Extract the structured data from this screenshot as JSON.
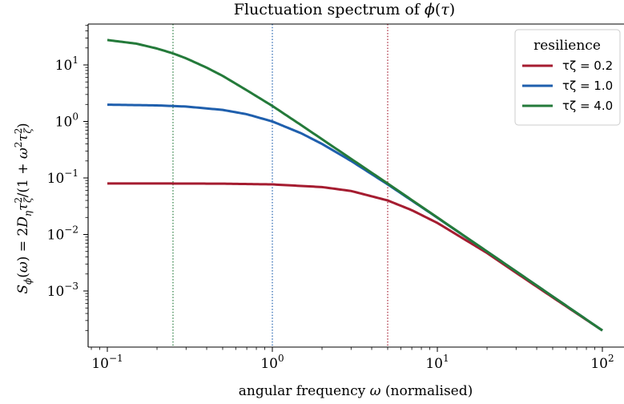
{
  "chart_data": {
    "type": "line",
    "title": "Fluctuation spectrum of ϕ(τ)",
    "xlabel": "angular frequency ω (normalised)",
    "ylabel": "Sϕ(ω) = 2Dητζ²/(1 + ω²τζ²)",
    "xscale": "log",
    "yscale": "log",
    "xlim": [
      0.07,
      130
    ],
    "ylim": [
      0.00013,
      50
    ],
    "xticks": [
      {
        "value": 0.1,
        "base": "10",
        "exp": "−1"
      },
      {
        "value": 1,
        "base": "10",
        "exp": "0"
      },
      {
        "value": 10,
        "base": "10",
        "exp": "1"
      },
      {
        "value": 100,
        "base": "10",
        "exp": "2"
      }
    ],
    "yticks": [
      {
        "value": 0.001,
        "base": "10",
        "exp": "−3"
      },
      {
        "value": 0.01,
        "base": "10",
        "exp": "−2"
      },
      {
        "value": 0.1,
        "base": "10",
        "exp": "−1"
      },
      {
        "value": 1,
        "base": "10",
        "exp": "0"
      },
      {
        "value": 10,
        "base": "10",
        "exp": "1"
      }
    ],
    "legend": {
      "title": "resilience",
      "placement": "top-right"
    },
    "grid": false,
    "series": [
      {
        "name": "τζ = 0.2",
        "color": "#a51c30",
        "x": [
          0.1,
          0.2,
          0.5,
          1,
          2,
          3,
          5,
          7,
          10,
          20,
          30,
          50,
          100
        ],
        "y": [
          0.08,
          0.0799,
          0.0792,
          0.0769,
          0.069,
          0.0588,
          0.04,
          0.0269,
          0.016,
          0.0047,
          0.0021,
          0.00077,
          0.0002
        ]
      },
      {
        "name": "τζ = 1.0",
        "color": "#1f5fad",
        "x": [
          0.1,
          0.2,
          0.3,
          0.5,
          0.7,
          1,
          1.5,
          2,
          3,
          5,
          10,
          20,
          50,
          100
        ],
        "y": [
          1.98,
          1.923,
          1.835,
          1.6,
          1.342,
          1.0,
          0.615,
          0.4,
          0.2,
          0.0769,
          0.0198,
          0.005,
          0.0008,
          0.0002
        ]
      },
      {
        "name": "τζ = 4.0",
        "color": "#247a3a",
        "x": [
          0.1,
          0.15,
          0.2,
          0.25,
          0.3,
          0.4,
          0.5,
          0.7,
          1,
          1.5,
          2,
          3,
          5,
          10,
          20,
          50,
          100
        ],
        "y": [
          27.6,
          23.8,
          19.5,
          16.0,
          13.1,
          8.95,
          6.4,
          3.56,
          1.88,
          0.855,
          0.485,
          0.218,
          0.0797,
          0.02,
          0.005,
          0.0008,
          0.0002
        ]
      }
    ],
    "vlines": [
      {
        "x": 0.25,
        "color": "#247a3a"
      },
      {
        "x": 1.0,
        "color": "#1f5fad"
      },
      {
        "x": 5.0,
        "color": "#a51c30"
      }
    ]
  }
}
